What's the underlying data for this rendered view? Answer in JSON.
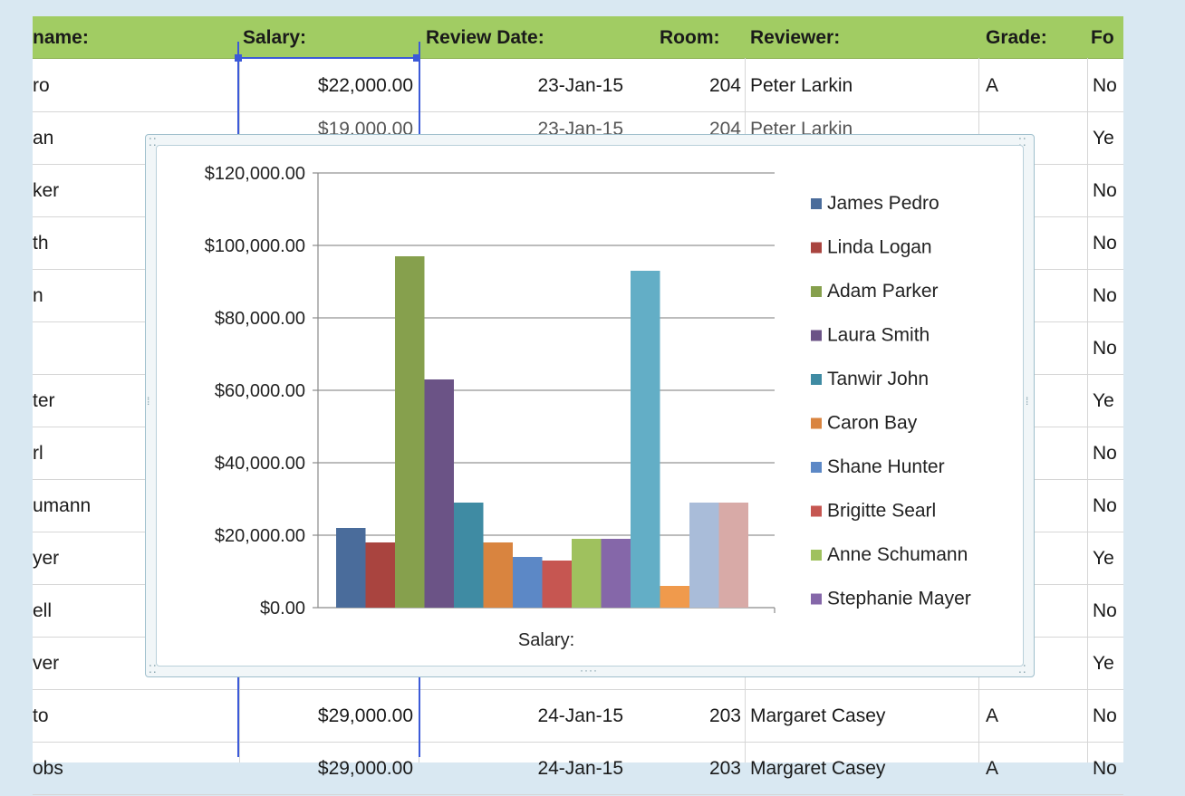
{
  "sheet": {
    "columns": [
      {
        "label": "name:"
      },
      {
        "label": "Salary:"
      },
      {
        "label": "Review Date:"
      },
      {
        "label": "Room:"
      },
      {
        "label": "Reviewer:"
      },
      {
        "label": "Grade:"
      },
      {
        "label": "Fo"
      }
    ],
    "rows": [
      {
        "name": "ro",
        "salary": "$22,000.00",
        "date": "23-Jan-15",
        "room": "204",
        "reviewer": "Peter Larkin",
        "grade": "A",
        "fo": "No"
      },
      {
        "name": "an",
        "salary": "",
        "date": "",
        "room": "",
        "reviewer": "",
        "grade": "",
        "fo": "Ye"
      },
      {
        "name": "ker",
        "salary": "",
        "date": "",
        "room": "",
        "reviewer": "",
        "grade": "",
        "fo": "No"
      },
      {
        "name": "th",
        "salary": "",
        "date": "",
        "room": "",
        "reviewer": "",
        "grade": "",
        "fo": "No"
      },
      {
        "name": "n",
        "salary": "",
        "date": "",
        "room": "",
        "reviewer": "",
        "grade": "",
        "fo": "No"
      },
      {
        "name": "",
        "salary": "",
        "date": "",
        "room": "",
        "reviewer": "",
        "grade": "",
        "fo": "No"
      },
      {
        "name": "ter",
        "salary": "",
        "date": "",
        "room": "",
        "reviewer": "",
        "grade": "",
        "fo": "Ye"
      },
      {
        "name": "rl",
        "salary": "",
        "date": "",
        "room": "",
        "reviewer": "",
        "grade": "",
        "fo": "No"
      },
      {
        "name": "umann",
        "salary": "",
        "date": "",
        "room": "",
        "reviewer": "",
        "grade": "",
        "fo": "No"
      },
      {
        "name": "yer",
        "salary": "",
        "date": "",
        "room": "",
        "reviewer": "",
        "grade": "",
        "fo": "Ye"
      },
      {
        "name": "ell",
        "salary": "",
        "date": "",
        "room": "",
        "reviewer": "",
        "grade": "",
        "fo": "No"
      },
      {
        "name": "ver",
        "salary": "",
        "date": "",
        "room": "",
        "reviewer": "",
        "grade": "",
        "fo": "Ye"
      },
      {
        "name": "to",
        "salary": "$29,000.00",
        "date": "24-Jan-15",
        "room": "203",
        "reviewer": "Margaret Casey",
        "grade": "A",
        "fo": "No"
      },
      {
        "name": "obs",
        "salary": "$29,000.00",
        "date": "24-Jan-15",
        "room": "203",
        "reviewer": "Margaret Casey",
        "grade": "A",
        "fo": "No"
      }
    ],
    "partial_row_under_chart": {
      "salary": "$19,000.00",
      "date": "23-Jan-15",
      "room": "204",
      "reviewer": "Peter Larkin"
    }
  },
  "chart_data": {
    "type": "bar",
    "categories": [
      "Salary:"
    ],
    "xlabel": "Salary:",
    "ylim": [
      0,
      120000
    ],
    "yticks": [
      "$0.00",
      "$20,000.00",
      "$40,000.00",
      "$60,000.00",
      "$80,000.00",
      "$100,000.00",
      "$120,000.00"
    ],
    "grid": true,
    "legend_position": "right",
    "series": [
      {
        "name": "James Pedro",
        "value": 22000,
        "color": "#4a6c9b"
      },
      {
        "name": "Linda Logan",
        "value": 18000,
        "color": "#a9443f"
      },
      {
        "name": "Adam Parker",
        "value": 97000,
        "color": "#86a04d"
      },
      {
        "name": "Laura Smith",
        "value": 63000,
        "color": "#6b5386"
      },
      {
        "name": "Tanwir John",
        "value": 29000,
        "color": "#3f8ba3"
      },
      {
        "name": "Caron Bay",
        "value": 18000,
        "color": "#d9843f"
      },
      {
        "name": "Shane Hunter",
        "value": 14000,
        "color": "#5c88c6"
      },
      {
        "name": "Brigitte Searl",
        "value": 13000,
        "color": "#c65651"
      },
      {
        "name": "Anne Schumann",
        "value": 19000,
        "color": "#9fc15e"
      },
      {
        "name": "Stephanie Mayer",
        "value": 19000,
        "color": "#8567a9"
      },
      {
        "name": "",
        "value": 93000,
        "color": "#63aec6"
      },
      {
        "name": "",
        "value": 6000,
        "color": "#f09a4c"
      },
      {
        "name": "",
        "value": 29000,
        "color": "#a9bcd9"
      },
      {
        "name": "",
        "value": 29000,
        "color": "#d8aaa7"
      }
    ]
  }
}
